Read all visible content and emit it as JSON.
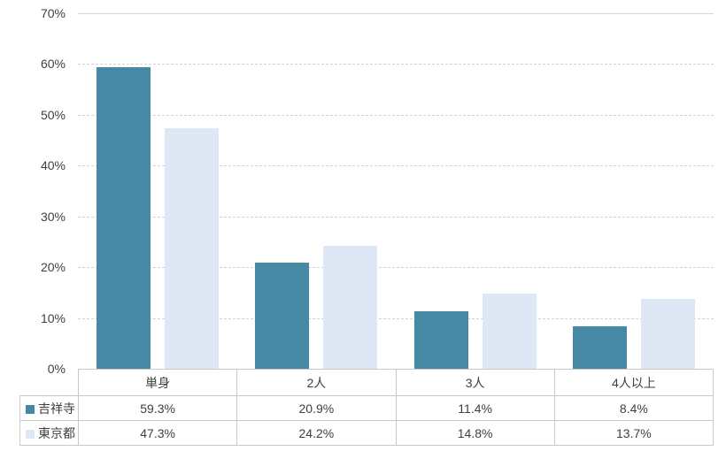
{
  "chart_data": {
    "type": "bar",
    "categories": [
      "単身",
      "2人",
      "3人",
      "4人以上"
    ],
    "series": [
      {
        "name": "吉祥寺",
        "color": "#4589A4",
        "values": [
          59.3,
          20.9,
          11.4,
          8.4
        ],
        "labels": [
          "59.3%",
          "20.9%",
          "11.4%",
          "8.4%"
        ]
      },
      {
        "name": "東京都",
        "color": "#DDE8F4",
        "values": [
          47.3,
          24.2,
          14.8,
          13.7
        ],
        "labels": [
          "47.3%",
          "24.2%",
          "14.8%",
          "13.7%"
        ]
      }
    ],
    "ylim": [
      0,
      70
    ],
    "yticks": [
      {
        "value": 0,
        "label": "0%"
      },
      {
        "value": 10,
        "label": "10%"
      },
      {
        "value": 20,
        "label": "20%"
      },
      {
        "value": 30,
        "label": "30%"
      },
      {
        "value": 40,
        "label": "40%"
      },
      {
        "value": 50,
        "label": "50%"
      },
      {
        "value": 60,
        "label": "60%"
      },
      {
        "value": 70,
        "label": "70%"
      }
    ],
    "grid": true,
    "legend_position": "data-table-left"
  }
}
